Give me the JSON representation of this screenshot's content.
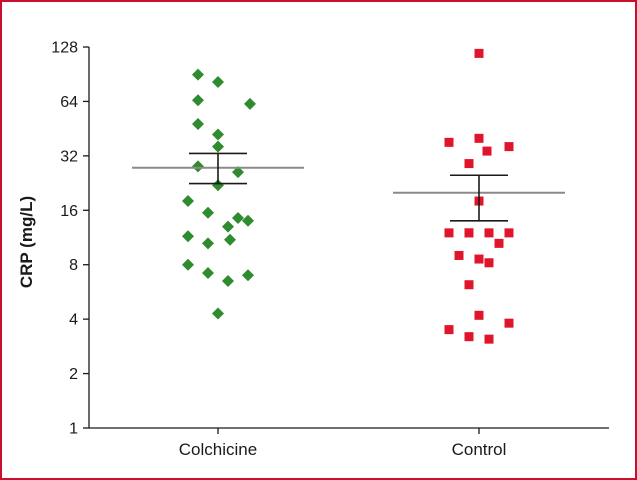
{
  "chart_data": {
    "type": "scatter",
    "yscale": "log2",
    "ylim": [
      1,
      128
    ],
    "yticks": [
      1,
      2,
      4,
      8,
      16,
      32,
      64,
      128
    ],
    "ytick_labels": [
      "1",
      "2",
      "4",
      "8",
      "16",
      "32",
      "64",
      "128"
    ],
    "ylabel": "CRP (mg/L)",
    "xlabel": "",
    "title": "",
    "categories": [
      "Colchicine",
      "Control"
    ],
    "grid": false,
    "series": [
      {
        "category": "Colchicine",
        "marker": "diamond",
        "color": "#2e8b2e",
        "values": [
          90,
          82,
          65,
          62,
          48,
          42,
          36,
          28,
          26,
          22,
          18,
          15.5,
          14.5,
          14,
          13,
          11.5,
          11,
          10.5,
          8,
          7.2,
          7,
          6.5,
          4.3
        ],
        "mean": 27.5,
        "error_upper": 33,
        "error_lower": 22.5
      },
      {
        "category": "Control",
        "marker": "square",
        "color": "#e0142b",
        "values": [
          118,
          40,
          38,
          36,
          34,
          29,
          18,
          12,
          12,
          12,
          12,
          12,
          10.5,
          9,
          8.6,
          8.2,
          6.2,
          4.2,
          3.8,
          3.5,
          3.2,
          3.1
        ],
        "mean": 20,
        "error_upper": 25,
        "error_lower": 14
      }
    ]
  }
}
